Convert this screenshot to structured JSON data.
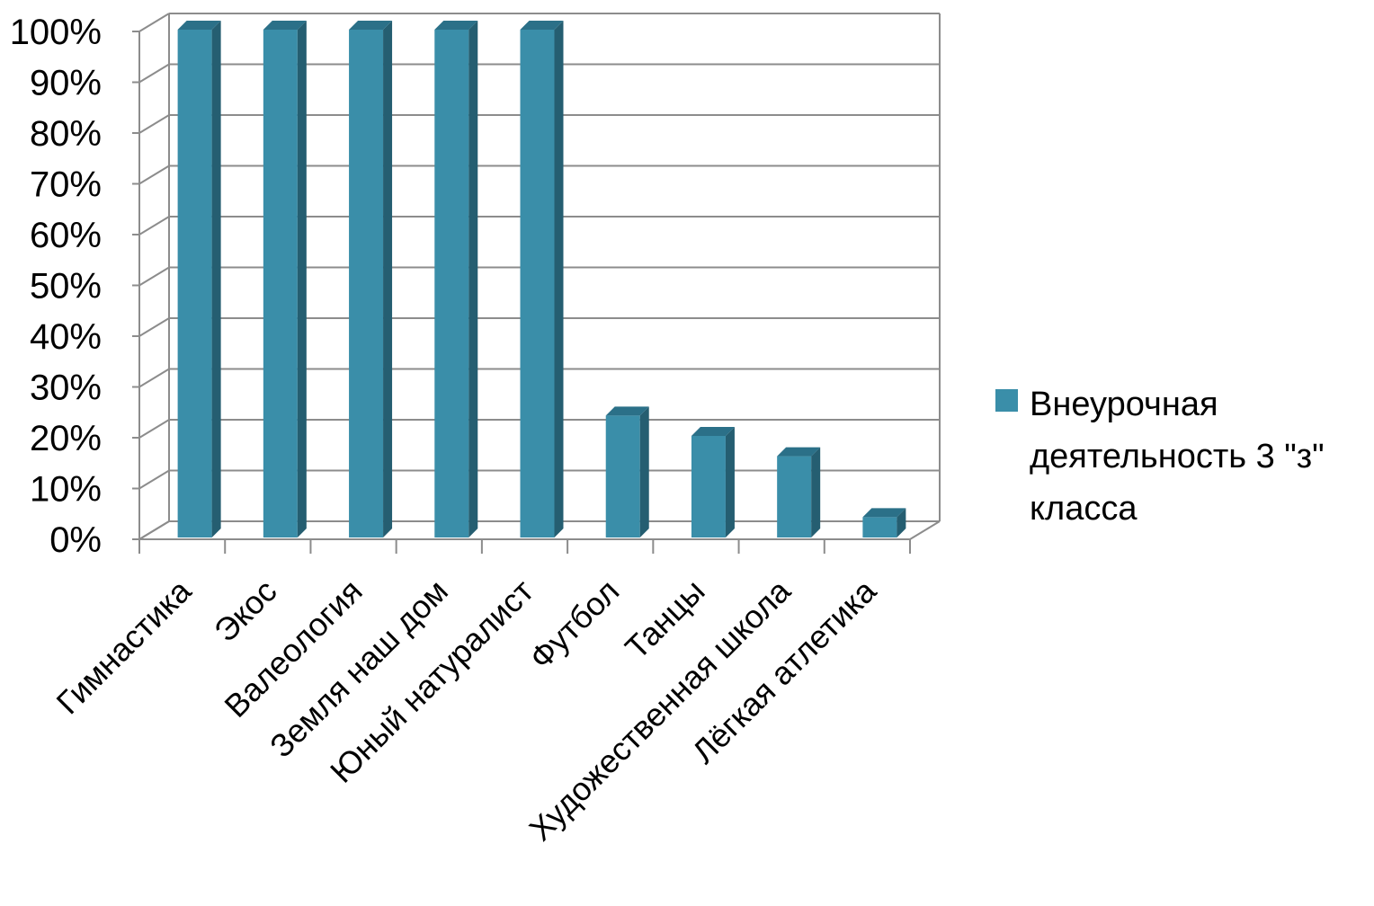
{
  "chart_data": {
    "type": "bar",
    "categories": [
      "Гимнастика",
      "Экос",
      "Валеология",
      "Земля наш дом",
      "Юный натуралист",
      "Футбол",
      "Танцы",
      "Художественная школа",
      "Лёгкая атлетика"
    ],
    "series": [
      {
        "name": "Внеурочная деятельность 3 \"з\" класса",
        "values": [
          100,
          100,
          100,
          100,
          100,
          24,
          20,
          16,
          4
        ]
      }
    ],
    "y_ticks": [
      "0%",
      "10%",
      "20%",
      "30%",
      "40%",
      "50%",
      "60%",
      "70%",
      "80%",
      "90%",
      "100%"
    ],
    "ylim": [
      0,
      100
    ],
    "y_unit": "%",
    "grid": true,
    "style": "3d-column",
    "legend": {
      "position": "right",
      "lines": [
        "Внеурочная",
        "деятельность 3 \"з\"",
        "класса"
      ]
    },
    "colors": {
      "bar_front": "#3a8ea9",
      "bar_side": "#255e71",
      "bar_top": "#2b7088",
      "grid": "#8c8c8c",
      "legend_swatch": "#3a8ea9"
    }
  }
}
